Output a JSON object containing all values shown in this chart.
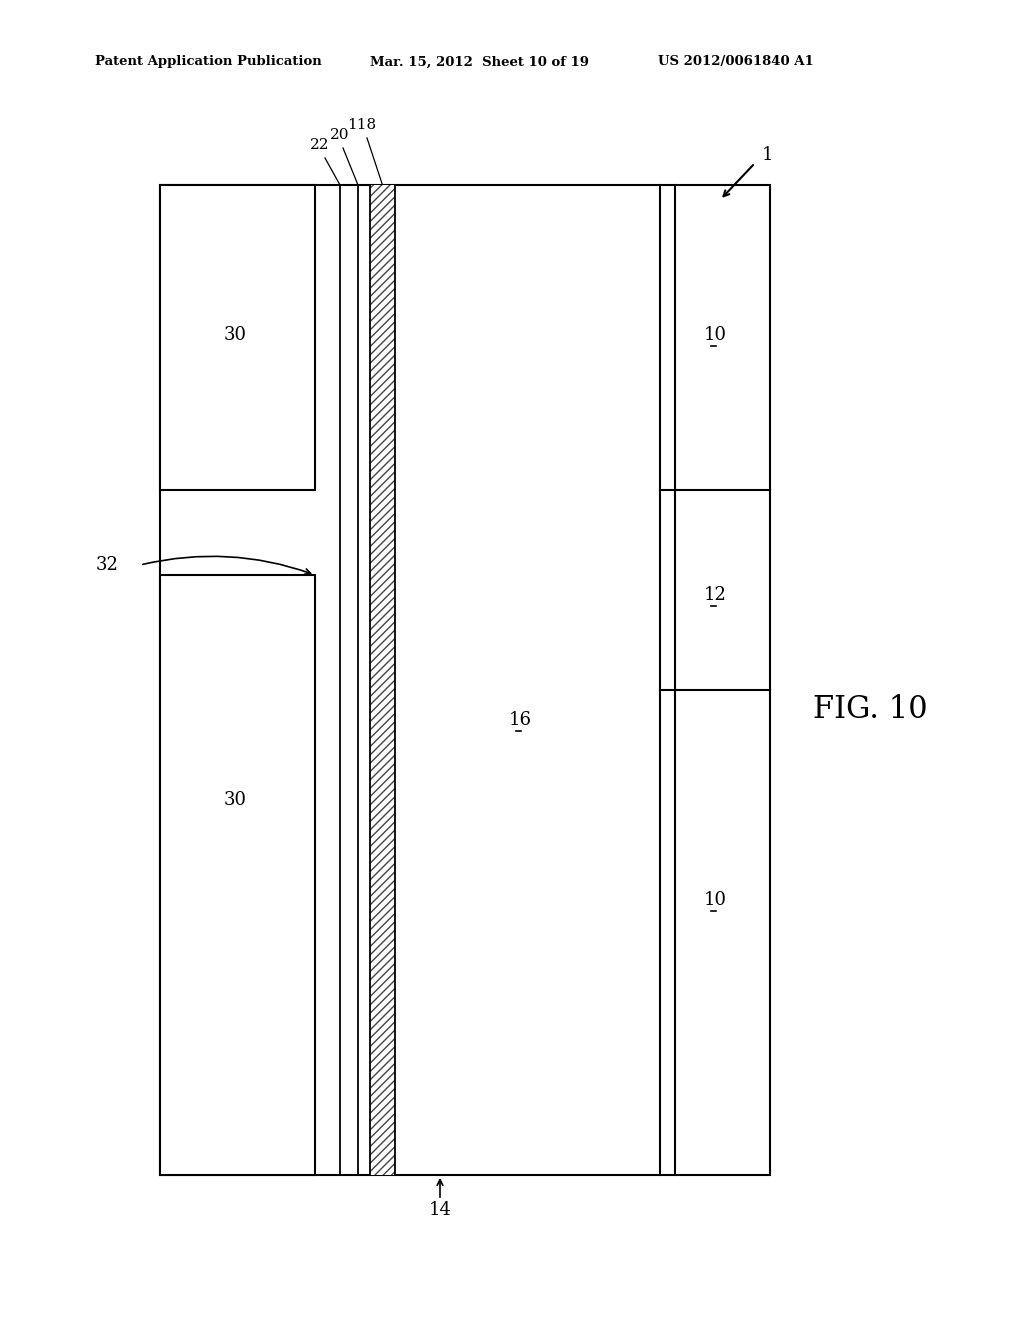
{
  "bg_color": "#ffffff",
  "header_left": "Patent Application Publication",
  "header_mid": "Mar. 15, 2012  Sheet 10 of 19",
  "header_right": "US 2012/0061840 A1",
  "fig_label": "FIG. 10",
  "line_color": "#000000",
  "lw": 1.5
}
